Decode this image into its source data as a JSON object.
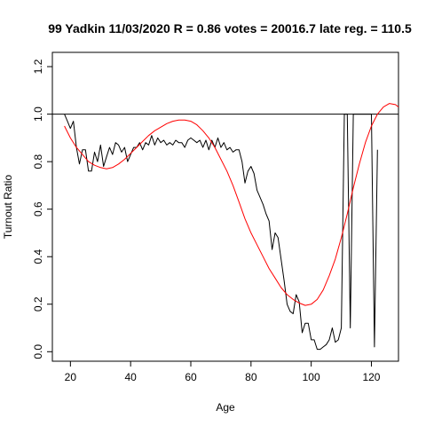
{
  "chart_data": {
    "type": "line",
    "title": "99 Yadkin 11/03/2020 R = 0.86 votes = 20016.7 late reg. = 110.5",
    "xlabel": "Age",
    "ylabel": "Turnout Ratio",
    "xlim": [
      14,
      129
    ],
    "ylim": [
      -0.04,
      1.26
    ],
    "xticks": [
      20,
      40,
      60,
      80,
      100,
      120
    ],
    "yticks": [
      0.0,
      0.2,
      0.4,
      0.6,
      0.8,
      1.0,
      1.2
    ],
    "ytick_labels": [
      "0.0",
      "0.2",
      "0.4",
      "0.6",
      "0.8",
      "1.0",
      "1.2"
    ],
    "grid": false,
    "reference_line": {
      "y": 1.0,
      "color": "#000000"
    },
    "series": [
      {
        "color": "#000000",
        "x": [
          18,
          19,
          20,
          21,
          22,
          23,
          24,
          25,
          26,
          27,
          28,
          29,
          30,
          31,
          32,
          33,
          34,
          35,
          36,
          37,
          38,
          39,
          40,
          41,
          42,
          43,
          44,
          45,
          46,
          47,
          48,
          49,
          50,
          51,
          52,
          53,
          54,
          55,
          56,
          57,
          58,
          59,
          60,
          61,
          62,
          63,
          64,
          65,
          66,
          67,
          68,
          69,
          70,
          71,
          72,
          73,
          74,
          75,
          76,
          77,
          78,
          79,
          80,
          81,
          82,
          83,
          84,
          85,
          86,
          87,
          88,
          89,
          90,
          91,
          92,
          93,
          94,
          95,
          96,
          97,
          98,
          99,
          100,
          101,
          102,
          103,
          104,
          105,
          106,
          107,
          108,
          109,
          110,
          111,
          112,
          113,
          114,
          115,
          116,
          117,
          118,
          119,
          120,
          121,
          122
        ],
        "y": [
          1.0,
          0.97,
          0.94,
          0.97,
          0.86,
          0.79,
          0.85,
          0.85,
          0.76,
          0.76,
          0.84,
          0.8,
          0.87,
          0.78,
          0.82,
          0.86,
          0.83,
          0.88,
          0.87,
          0.84,
          0.86,
          0.8,
          0.83,
          0.86,
          0.86,
          0.88,
          0.85,
          0.88,
          0.87,
          0.91,
          0.87,
          0.9,
          0.88,
          0.89,
          0.87,
          0.88,
          0.87,
          0.89,
          0.88,
          0.88,
          0.86,
          0.89,
          0.9,
          0.89,
          0.88,
          0.89,
          0.86,
          0.89,
          0.85,
          0.89,
          0.86,
          0.9,
          0.86,
          0.88,
          0.85,
          0.86,
          0.84,
          0.85,
          0.85,
          0.8,
          0.71,
          0.76,
          0.78,
          0.75,
          0.68,
          0.65,
          0.62,
          0.58,
          0.55,
          0.43,
          0.5,
          0.48,
          0.39,
          0.3,
          0.2,
          0.17,
          0.16,
          0.24,
          0.21,
          0.08,
          0.12,
          0.12,
          0.05,
          0.05,
          0.01,
          0.01,
          0.02,
          0.03,
          0.05,
          0.1,
          0.04,
          0.05,
          0.1,
          1.0,
          1.0,
          0.1,
          1.0,
          1.0,
          1.0,
          1.0,
          1.0,
          1.0,
          1.0,
          0.02,
          0.85
        ]
      },
      {
        "color": "#ff0000",
        "x": [
          18,
          20,
          22,
          24,
          26,
          28,
          30,
          32,
          34,
          36,
          38,
          40,
          42,
          44,
          46,
          48,
          50,
          52,
          54,
          56,
          58,
          60,
          62,
          64,
          66,
          68,
          70,
          72,
          74,
          76,
          78,
          80,
          82,
          84,
          86,
          88,
          90,
          92,
          94,
          96,
          98,
          100,
          102,
          104,
          106,
          108,
          110,
          112,
          114,
          116,
          118,
          120,
          122,
          124,
          126,
          128,
          129
        ],
        "y": [
          0.95,
          0.9,
          0.86,
          0.83,
          0.8,
          0.785,
          0.775,
          0.77,
          0.775,
          0.79,
          0.81,
          0.835,
          0.86,
          0.885,
          0.91,
          0.93,
          0.945,
          0.96,
          0.97,
          0.975,
          0.975,
          0.97,
          0.955,
          0.93,
          0.9,
          0.86,
          0.81,
          0.76,
          0.7,
          0.63,
          0.56,
          0.5,
          0.45,
          0.4,
          0.35,
          0.31,
          0.27,
          0.24,
          0.22,
          0.205,
          0.195,
          0.2,
          0.22,
          0.26,
          0.32,
          0.39,
          0.48,
          0.58,
          0.69,
          0.79,
          0.88,
          0.95,
          1.0,
          1.03,
          1.045,
          1.04,
          1.03
        ]
      }
    ]
  }
}
